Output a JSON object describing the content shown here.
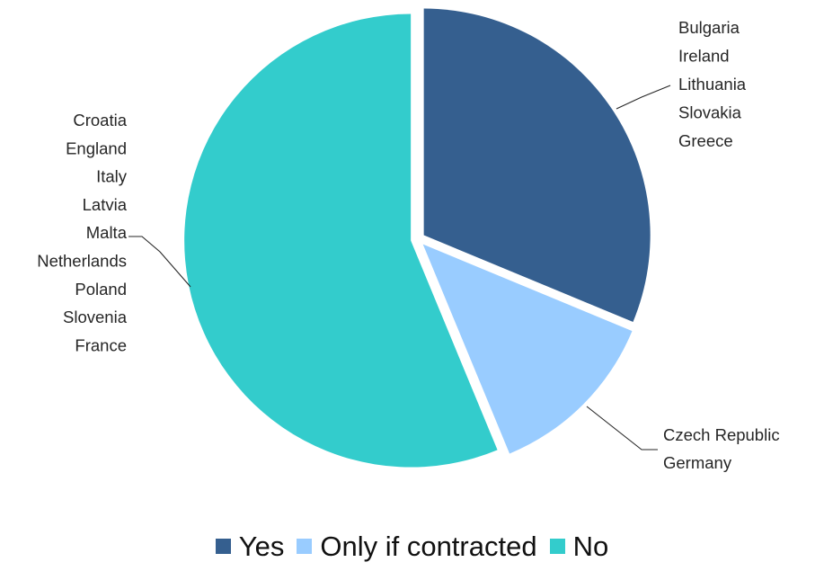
{
  "chart_data": {
    "type": "pie",
    "slices": [
      {
        "name": "Yes",
        "value": 5,
        "color": "#355F8F",
        "countries": [
          "Bulgaria",
          "Ireland",
          "Lithuania",
          "Slovakia",
          "Greece"
        ]
      },
      {
        "name": "Only if contracted",
        "value": 2,
        "color": "#99CCFF",
        "countries": [
          "Czech Republic",
          "Germany"
        ]
      },
      {
        "name": "No",
        "value": 9,
        "color": "#33CCCC",
        "countries": [
          "Croatia",
          "England",
          "Italy",
          "Latvia",
          "Malta",
          "Netherlands",
          "Poland",
          "Slovenia",
          "France"
        ]
      }
    ],
    "legend": {
      "position": "bottom"
    }
  }
}
